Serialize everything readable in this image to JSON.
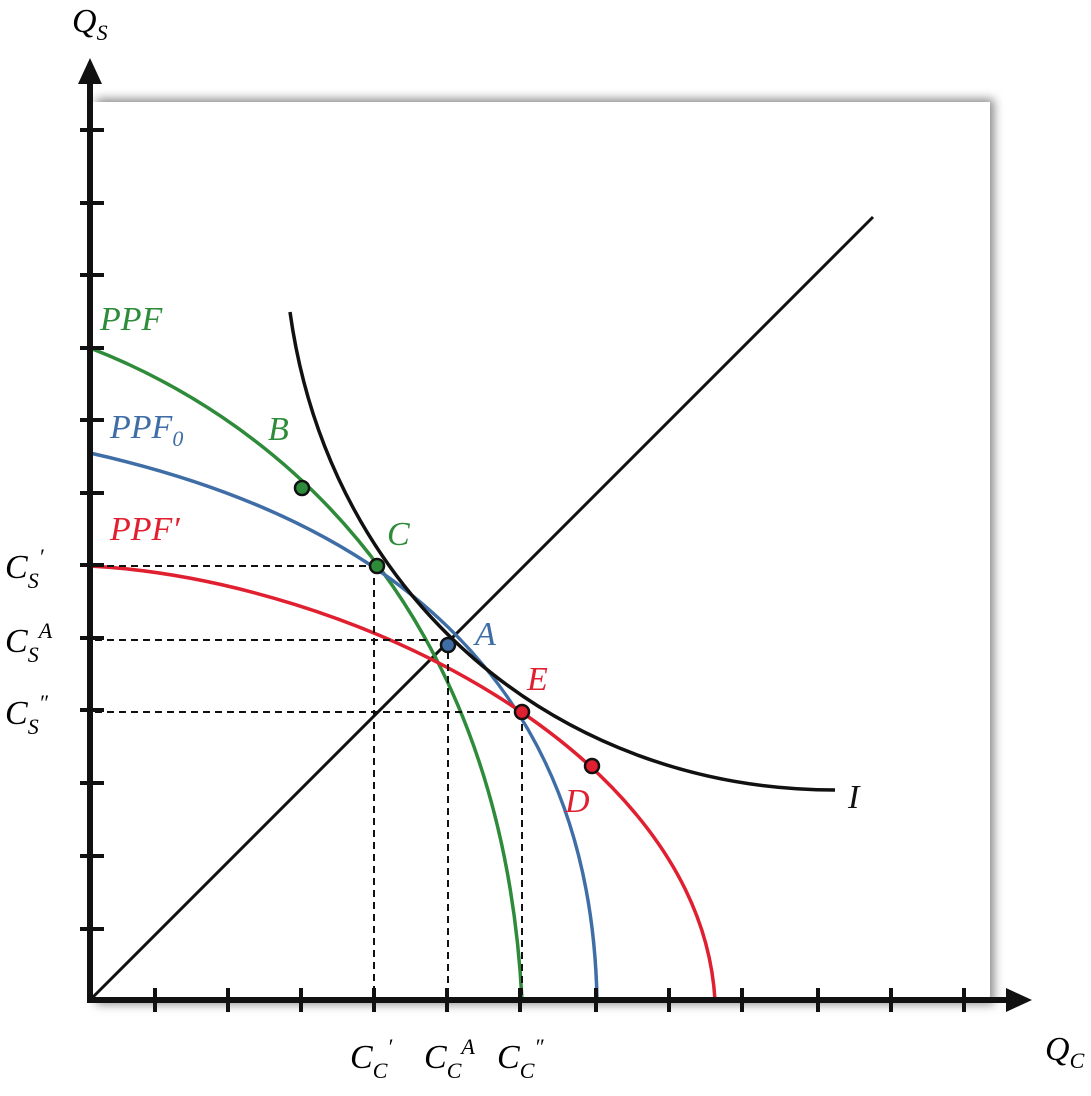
{
  "axes": {
    "y": {
      "main": "Q",
      "sub": "S"
    },
    "x": {
      "main": "Q",
      "sub": "C"
    }
  },
  "curves": [
    {
      "label": "PPF"
    },
    {
      "label": "PPF",
      "sub": "0"
    },
    {
      "label": "PPF′"
    },
    {
      "label": "I"
    }
  ],
  "points": [
    "B",
    "C",
    "A",
    "E",
    "D"
  ],
  "y_labels": [
    {
      "main": "C",
      "sub": "S",
      "sup": "′"
    },
    {
      "main": "C",
      "sub": "S",
      "sup": "A"
    },
    {
      "main": "C",
      "sub": "S",
      "sup": "″"
    }
  ],
  "x_labels": [
    {
      "main": "C",
      "sub": "C",
      "sup": "′"
    },
    {
      "main": "C",
      "sub": "C",
      "sup": "A"
    },
    {
      "main": "C",
      "sub": "C",
      "sup": "″"
    }
  ]
}
